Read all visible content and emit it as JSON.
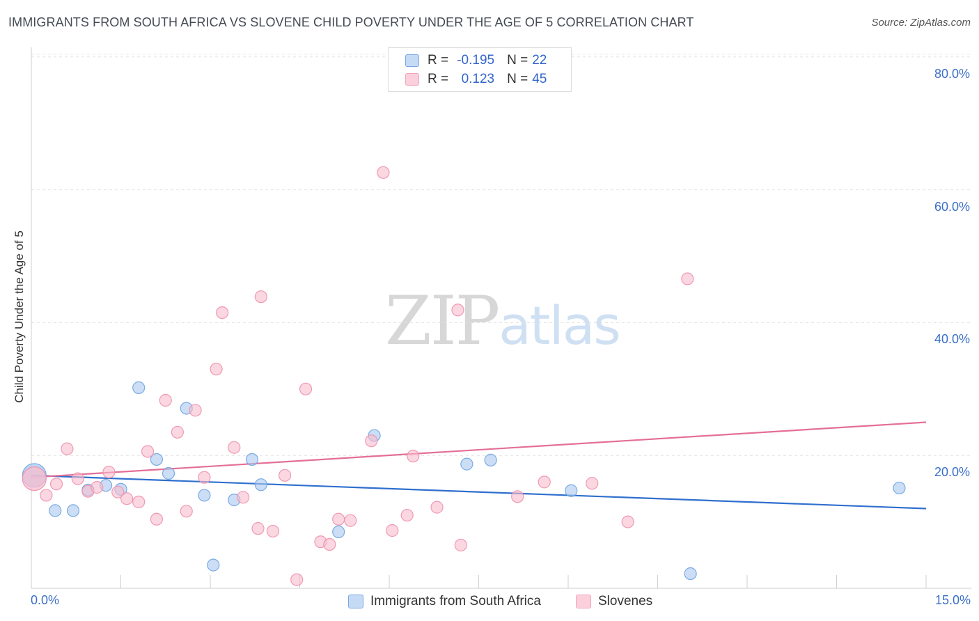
{
  "header": {
    "title": "IMMIGRANTS FROM SOUTH AFRICA VS SLOVENE CHILD POVERTY UNDER THE AGE OF 5 CORRELATION CHART",
    "source": "Source: ZipAtlas.com"
  },
  "watermark": {
    "zip": "ZIP",
    "atlas": "atlas"
  },
  "legend": {
    "rows": [
      {
        "r_label": "R =",
        "r_value": "-0.195",
        "n_label": "N =",
        "n_value": "22",
        "color": "#a8c8f0"
      },
      {
        "r_label": "R =",
        "r_value": "0.123",
        "n_label": "N =",
        "n_value": "45",
        "color": "#f8bccd"
      }
    ]
  },
  "chart_data": {
    "type": "scatter",
    "title": "IMMIGRANTS FROM SOUTH AFRICA VS SLOVENE CHILD POVERTY UNDER THE AGE OF 5 CORRELATION CHART",
    "xlabel": "",
    "ylabel": "Child Poverty Under the Age of 5",
    "xlim": [
      0,
      15
    ],
    "ylim": [
      0,
      83
    ],
    "x_tick_labels": [
      "0.0%",
      "15.0%"
    ],
    "y_ticks": [
      20,
      40,
      60,
      80
    ],
    "y_tick_labels": [
      "20.0%",
      "40.0%",
      "60.0%",
      "80.0%"
    ],
    "grid": true,
    "legend_position": "bottom-center",
    "series": [
      {
        "name": "Immigrants from South Africa",
        "color": "#6fa3e0",
        "fill": "#a8c8f0",
        "trend": {
          "x": [
            0,
            15
          ],
          "y": [
            17.0,
            12.0
          ],
          "color": "#2f6fce"
        },
        "points": [
          {
            "x": 0.05,
            "y": 17.0,
            "big": true
          },
          {
            "x": 0.4,
            "y": 11.7
          },
          {
            "x": 0.7,
            "y": 11.7
          },
          {
            "x": 0.95,
            "y": 14.8
          },
          {
            "x": 1.25,
            "y": 15.5
          },
          {
            "x": 1.5,
            "y": 14.9
          },
          {
            "x": 1.8,
            "y": 30.2
          },
          {
            "x": 2.1,
            "y": 19.4
          },
          {
            "x": 2.3,
            "y": 17.3
          },
          {
            "x": 2.6,
            "y": 27.1
          },
          {
            "x": 2.9,
            "y": 14.0
          },
          {
            "x": 3.05,
            "y": 3.5
          },
          {
            "x": 3.4,
            "y": 13.3
          },
          {
            "x": 3.7,
            "y": 19.4
          },
          {
            "x": 3.85,
            "y": 15.6
          },
          {
            "x": 5.15,
            "y": 8.5
          },
          {
            "x": 5.75,
            "y": 23.0
          },
          {
            "x": 7.3,
            "y": 18.7
          },
          {
            "x": 7.7,
            "y": 19.3
          },
          {
            "x": 9.05,
            "y": 14.7
          },
          {
            "x": 11.05,
            "y": 2.2
          },
          {
            "x": 14.55,
            "y": 15.1
          }
        ]
      },
      {
        "name": "Slovenes",
        "color": "#ee90ad",
        "fill": "#f8bccd",
        "trend": {
          "x": [
            0,
            15
          ],
          "y": [
            16.7,
            25.0
          ],
          "color": "#e46f96"
        },
        "points": [
          {
            "x": 0.05,
            "y": 16.5,
            "big": true
          },
          {
            "x": 0.25,
            "y": 14.0
          },
          {
            "x": 0.42,
            "y": 15.7
          },
          {
            "x": 0.6,
            "y": 21.0
          },
          {
            "x": 0.78,
            "y": 16.5
          },
          {
            "x": 0.95,
            "y": 14.6
          },
          {
            "x": 1.1,
            "y": 15.2
          },
          {
            "x": 1.3,
            "y": 17.5
          },
          {
            "x": 1.45,
            "y": 14.5
          },
          {
            "x": 1.6,
            "y": 13.5
          },
          {
            "x": 1.8,
            "y": 13.0
          },
          {
            "x": 1.95,
            "y": 20.6
          },
          {
            "x": 2.1,
            "y": 10.4
          },
          {
            "x": 2.25,
            "y": 28.3
          },
          {
            "x": 2.45,
            "y": 23.5
          },
          {
            "x": 2.6,
            "y": 11.6
          },
          {
            "x": 2.75,
            "y": 26.8
          },
          {
            "x": 2.9,
            "y": 16.7
          },
          {
            "x": 3.1,
            "y": 33.0
          },
          {
            "x": 3.2,
            "y": 41.5
          },
          {
            "x": 3.4,
            "y": 21.2
          },
          {
            "x": 3.55,
            "y": 13.7
          },
          {
            "x": 3.8,
            "y": 9.0
          },
          {
            "x": 3.85,
            "y": 43.9
          },
          {
            "x": 4.05,
            "y": 8.6
          },
          {
            "x": 4.25,
            "y": 17.0
          },
          {
            "x": 4.45,
            "y": 1.3
          },
          {
            "x": 4.6,
            "y": 30.0
          },
          {
            "x": 4.85,
            "y": 7.0
          },
          {
            "x": 5.0,
            "y": 6.6
          },
          {
            "x": 5.15,
            "y": 10.4
          },
          {
            "x": 5.35,
            "y": 10.2
          },
          {
            "x": 5.7,
            "y": 22.2
          },
          {
            "x": 5.9,
            "y": 62.6
          },
          {
            "x": 6.05,
            "y": 8.7
          },
          {
            "x": 6.3,
            "y": 11.0
          },
          {
            "x": 6.4,
            "y": 19.9
          },
          {
            "x": 6.8,
            "y": 12.2
          },
          {
            "x": 7.15,
            "y": 41.9
          },
          {
            "x": 7.2,
            "y": 6.5
          },
          {
            "x": 8.15,
            "y": 13.8
          },
          {
            "x": 8.6,
            "y": 16.0
          },
          {
            "x": 9.4,
            "y": 15.8
          },
          {
            "x": 10.0,
            "y": 10.0
          },
          {
            "x": 11.0,
            "y": 46.6
          }
        ]
      }
    ]
  }
}
